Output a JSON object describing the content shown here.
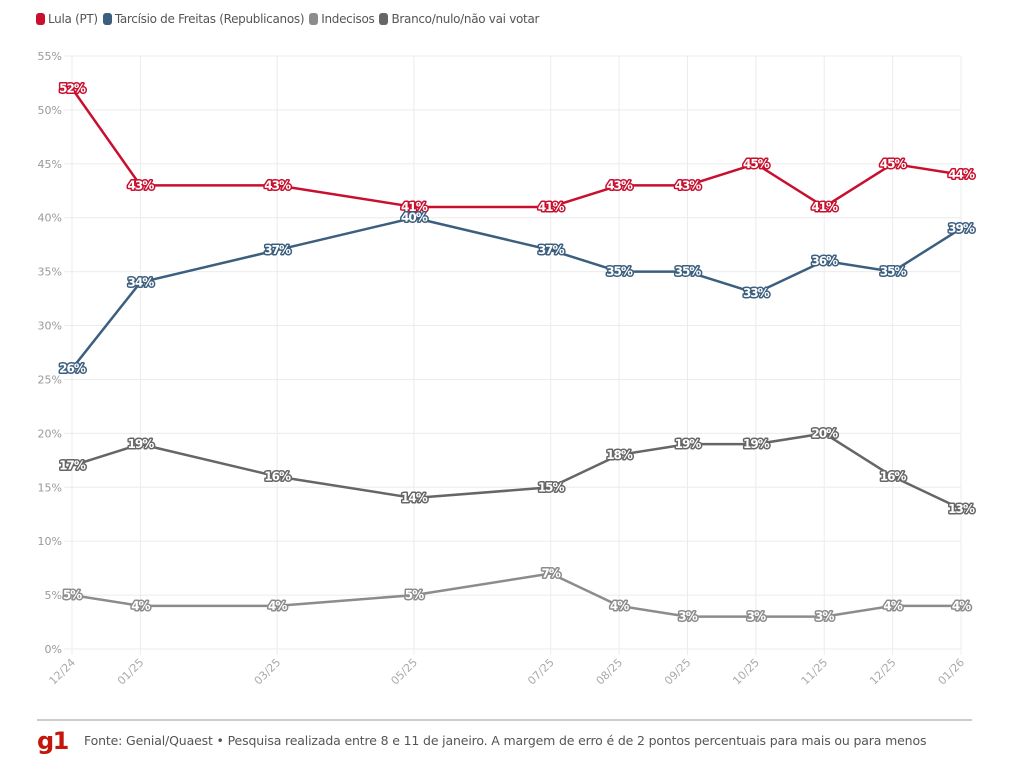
{
  "legend": [
    {
      "label": "Lula (PT)",
      "color": "#c8102e"
    },
    {
      "label": "Tarcísio de Freitas (Republicanos)",
      "color": "#3d5f7f"
    },
    {
      "label": "Indecisos",
      "color": "#8c8c8c"
    },
    {
      "label": "Branco/nulo/não vai votar",
      "color": "#666666"
    }
  ],
  "footer": {
    "logo": "g1",
    "source": "Fonte: Genial/Quaest • Pesquisa realizada entre 8 e 11 de janeiro. A margem de erro é de 2 pontos percentuais para mais ou para menos"
  },
  "chart_data": {
    "type": "line",
    "title": "",
    "xlabel": "",
    "ylabel": "",
    "x": [
      "12/24",
      "01/25",
      "03/25",
      "05/25",
      "07/25",
      "08/25",
      "09/25",
      "10/25",
      "11/25",
      "12/25",
      "01/26"
    ],
    "x_month_index": [
      0,
      1,
      3,
      5,
      7,
      8,
      9,
      10,
      11,
      12,
      13
    ],
    "ylim": [
      0,
      55
    ],
    "yticks": [
      0,
      5,
      10,
      15,
      20,
      25,
      30,
      35,
      40,
      45,
      50,
      55
    ],
    "ytick_labels": [
      "0%",
      "5%",
      "10%",
      "15%",
      "20%",
      "25%",
      "30%",
      "35%",
      "40%",
      "45%",
      "50%",
      "55%"
    ],
    "grid": true,
    "legend_position": "top-left",
    "series": [
      {
        "name": "Lula (PT)",
        "color": "#c8102e",
        "values": [
          52,
          43,
          43,
          41,
          41,
          43,
          43,
          45,
          41,
          45,
          44
        ]
      },
      {
        "name": "Tarcísio de Freitas (Republicanos)",
        "color": "#3d5f7f",
        "values": [
          26,
          34,
          37,
          40,
          37,
          35,
          35,
          33,
          36,
          35,
          39
        ]
      },
      {
        "name": "Indecisos",
        "color": "#8c8c8c",
        "values": [
          5,
          4,
          4,
          5,
          7,
          4,
          3,
          3,
          3,
          4,
          4
        ]
      },
      {
        "name": "Branco/nulo/não vai votar",
        "color": "#666666",
        "values": [
          17,
          19,
          16,
          14,
          15,
          18,
          19,
          19,
          20,
          16,
          13
        ]
      }
    ]
  }
}
